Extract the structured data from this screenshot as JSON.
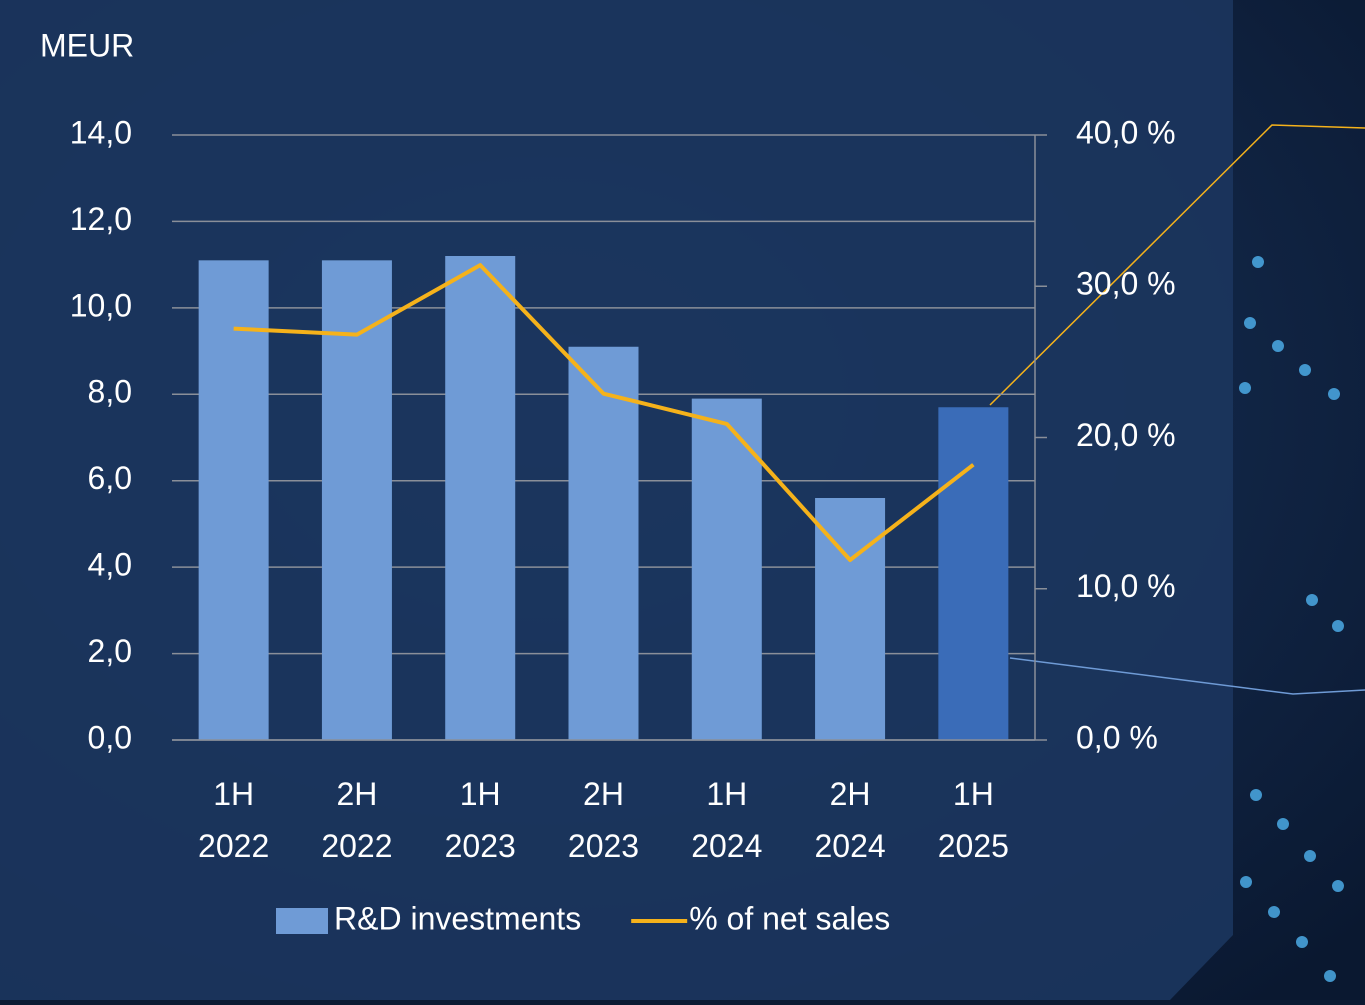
{
  "chart_data": {
    "type": "bar-line",
    "y_axis_label": "MEUR",
    "categories": [
      "1H 2022",
      "2H 2022",
      "1H 2023",
      "2H 2023",
      "1H 2024",
      "2H 2024",
      "1H 2025"
    ],
    "series": [
      {
        "name": "R&D investments",
        "type": "bar",
        "color": "#6f9bd6",
        "colors": [
          "#6f9bd6",
          "#6f9bd6",
          "#6f9bd6",
          "#6f9bd6",
          "#6f9bd6",
          "#6f9bd6",
          "#3a6cb8"
        ],
        "values": [
          11.1,
          11.1,
          11.2,
          9.1,
          7.9,
          5.6,
          7.7
        ]
      },
      {
        "name": "% of net sales",
        "type": "line",
        "axis": "y2",
        "color": "#f5b21b",
        "values": [
          27.2,
          26.8,
          31.4,
          22.9,
          20.9,
          11.9,
          18.2
        ]
      }
    ],
    "ylim": [
      0,
      14
    ],
    "yticks": [
      {
        "value": 0,
        "label": "0,0"
      },
      {
        "value": 2,
        "label": "2,0"
      },
      {
        "value": 4,
        "label": "4,0"
      },
      {
        "value": 6,
        "label": "6,0"
      },
      {
        "value": 8,
        "label": "8,0"
      },
      {
        "value": 10,
        "label": "10,0"
      },
      {
        "value": 12,
        "label": "12,0"
      },
      {
        "value": 14,
        "label": "14,0"
      }
    ],
    "y2lim": [
      0,
      40
    ],
    "y2ticks": [
      {
        "value": 0,
        "label": "0,0 %"
      },
      {
        "value": 10,
        "label": "10,0 %"
      },
      {
        "value": 20,
        "label": "20,0 %"
      },
      {
        "value": 30,
        "label": "30,0 %"
      },
      {
        "value": 40,
        "label": "40,0 %"
      }
    ],
    "grid": true,
    "legend": "bottom"
  }
}
